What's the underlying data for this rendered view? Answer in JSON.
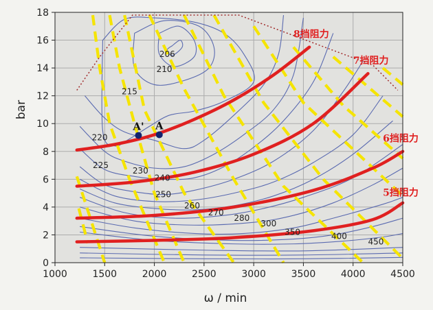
{
  "chart_data": {
    "type": "line",
    "title": "",
    "xlabel": "ω / min",
    "ylabel": "bar",
    "xlim": [
      1000,
      4500
    ],
    "ylim": [
      0,
      18
    ],
    "xticks": [
      1000,
      1500,
      2000,
      2500,
      3000,
      3500,
      4000,
      4500
    ],
    "yticks": [
      0,
      2,
      4,
      6,
      8,
      10,
      12,
      14,
      16,
      18
    ],
    "grid": true,
    "resistance_curves": [
      {
        "name": "8挡阻力",
        "color": "#e02020",
        "x": [
          1220,
          1600,
          2000,
          2400,
          2800,
          3200,
          3560
        ],
        "y": [
          8.1,
          8.5,
          9.2,
          10.3,
          11.7,
          13.5,
          15.5
        ]
      },
      {
        "name": "7挡阻力",
        "color": "#e02020",
        "x": [
          1220,
          1800,
          2400,
          3000,
          3600,
          4150
        ],
        "y": [
          5.5,
          5.8,
          6.5,
          7.8,
          10.0,
          13.6
        ]
      },
      {
        "name": "6挡阻力",
        "color": "#e02020",
        "x": [
          1220,
          2000,
          2800,
          3600,
          4200,
          4500
        ],
        "y": [
          3.2,
          3.4,
          4.0,
          5.2,
          6.8,
          8.0
        ]
      },
      {
        "name": "5挡阻力",
        "color": "#e02020",
        "x": [
          1220,
          2000,
          2800,
          3600,
          4200,
          4500
        ],
        "y": [
          1.5,
          1.6,
          1.8,
          2.3,
          3.1,
          4.3
        ]
      }
    ],
    "power_lines": {
      "color": "#f5e400",
      "style": "dashed",
      "lines": [
        {
          "x": [
            1380,
            1450,
            1550,
            1750,
            2100
          ],
          "y": [
            17.8,
            14,
            10,
            6,
            0
          ]
        },
        {
          "x": [
            1550,
            1650,
            1800,
            2000,
            2300
          ],
          "y": [
            17.8,
            14,
            10,
            5,
            0
          ]
        },
        {
          "x": [
            1700,
            1900,
            2300,
            2800
          ],
          "y": [
            17.8,
            11,
            5,
            0
          ]
        },
        {
          "x": [
            1950,
            2300,
            2800,
            3300
          ],
          "y": [
            17.8,
            12.5,
            6,
            0
          ]
        },
        {
          "x": [
            2300,
            2700,
            3300,
            4100
          ],
          "y": [
            17.8,
            12,
            5.5,
            0
          ]
        },
        {
          "x": [
            2600,
            3100,
            3700,
            4500
          ],
          "y": [
            17.8,
            11.5,
            6,
            0.3
          ]
        },
        {
          "x": [
            3000,
            3500,
            4500
          ],
          "y": [
            17,
            11.5,
            4.8
          ]
        },
        {
          "x": [
            3400,
            3900,
            4500
          ],
          "y": [
            15.5,
            11.3,
            7.5
          ]
        },
        {
          "x": [
            3800,
            4500
          ],
          "y": [
            14.8,
            10.5
          ]
        },
        {
          "x": [
            4300,
            4500
          ],
          "y": [
            14.0,
            12.8
          ]
        },
        {
          "x": [
            1220,
            1500
          ],
          "y": [
            6.2,
            0
          ]
        },
        {
          "x": [
            1240,
            1330
          ],
          "y": [
            3.9,
            1.4
          ]
        }
      ]
    },
    "full_load_curve": {
      "color": "#a02a2a",
      "style": "dotted",
      "x": [
        1220,
        1450,
        1780,
        2850,
        4200,
        4450
      ],
      "y": [
        12.4,
        14.8,
        17.8,
        17.8,
        14.2,
        12.4
      ]
    },
    "bsfc_contours": [
      {
        "label": "206",
        "x": [
          2180,
          2260,
          2280,
          2180,
          2130,
          2180
        ],
        "y": [
          15.6,
          16.0,
          15.5,
          14.9,
          15.3,
          15.6
        ]
      },
      {
        "label": "210",
        "x": [
          2050,
          2250,
          2400,
          2400,
          2200,
          2050,
          2050
        ],
        "y": [
          16.5,
          17.0,
          16.0,
          14.8,
          14.1,
          15.0,
          16.5
        ]
      },
      {
        "label": "215",
        "x": [
          1800,
          2100,
          2450,
          2600,
          2550,
          2300,
          2000,
          1800,
          1800
        ],
        "y": [
          16.5,
          17.4,
          17.0,
          15.5,
          14.0,
          13.1,
          12.8,
          14.0,
          16.5
        ]
      },
      {
        "label": "220",
        "x": [
          1480,
          1700,
          2000,
          2400,
          2700,
          2900,
          3000,
          2700,
          2400,
          2150,
          1950,
          1750,
          1600,
          1480,
          1480
        ],
        "y": [
          16.0,
          17.5,
          17.6,
          17.3,
          16.5,
          15.0,
          13.0,
          11.6,
          10.9,
          10.6,
          9.8,
          8.9,
          8.4,
          9.5,
          16.0
        ]
      },
      {
        "label": "225",
        "x": [
          1300,
          1500,
          1700,
          2000,
          2300,
          2500,
          2800,
          3100,
          3250,
          3300
        ],
        "y": [
          12.0,
          10.4,
          9.4,
          8.8,
          8.2,
          8.8,
          10.6,
          12.8,
          15.0,
          17.8
        ]
      },
      {
        "label": "230",
        "x": [
          1250,
          1500,
          1700,
          2000,
          2300,
          2600,
          2900,
          3200,
          3400,
          3500
        ],
        "y": [
          9.8,
          8.0,
          7.3,
          6.8,
          6.9,
          7.8,
          9.2,
          11.0,
          13.5,
          17.6
        ]
      },
      {
        "label": "240",
        "x": [
          1250,
          1500,
          1800,
          2100,
          2400,
          2700,
          3000,
          3300,
          3600,
          3800
        ],
        "y": [
          8.2,
          6.7,
          6.2,
          6.0,
          6.1,
          6.9,
          8.3,
          10.2,
          13.0,
          16.5
        ]
      },
      {
        "label": "250",
        "x": [
          1250,
          1500,
          1800,
          2100,
          2400,
          2800,
          3200,
          3600,
          3900,
          4100
        ],
        "y": [
          6.9,
          5.6,
          5.1,
          4.9,
          5.2,
          6.0,
          7.3,
          9.5,
          12.3,
          14.5
        ]
      },
      {
        "label": "260",
        "x": [
          1250,
          1600,
          2000,
          2400,
          2800,
          3200,
          3600,
          4000,
          4300
        ],
        "y": [
          6.0,
          4.8,
          4.4,
          4.5,
          5.0,
          5.8,
          7.2,
          9.2,
          12.0
        ]
      },
      {
        "label": "270",
        "x": [
          1250,
          1600,
          2000,
          2400,
          2800,
          3200,
          3600,
          4000,
          4400
        ],
        "y": [
          5.3,
          4.3,
          3.9,
          3.8,
          4.1,
          4.8,
          6.0,
          7.8,
          10.2
        ]
      },
      {
        "label": "280",
        "x": [
          1250,
          1700,
          2200,
          2700,
          3100,
          3500,
          4000,
          4500
        ],
        "y": [
          4.7,
          3.6,
          3.2,
          3.4,
          3.9,
          4.7,
          6.1,
          8.5
        ]
      },
      {
        "label": "300",
        "x": [
          1250,
          1800,
          2400,
          3000,
          3400,
          3800,
          4200,
          4500
        ],
        "y": [
          4.0,
          3.0,
          2.7,
          2.9,
          3.4,
          4.3,
          5.6,
          6.8
        ]
      },
      {
        "label": "350",
        "x": [
          1250,
          1800,
          2400,
          2900,
          3400,
          3800,
          4300,
          4500
        ],
        "y": [
          3.2,
          2.5,
          2.1,
          2.1,
          2.5,
          3.2,
          4.2,
          4.7
        ]
      },
      {
        "label": "400",
        "x": [
          1250,
          2000,
          2800,
          3400,
          3800,
          4200,
          4500
        ],
        "y": [
          2.6,
          1.9,
          1.6,
          1.7,
          2.0,
          2.6,
          3.2
        ]
      },
      {
        "label": "450",
        "x": [
          1250,
          2000,
          2800,
          3400,
          3900,
          4300,
          4500
        ],
        "y": [
          2.2,
          1.6,
          1.35,
          1.35,
          1.55,
          1.85,
          2.1
        ]
      },
      {
        "label": "",
        "x": [
          1250,
          2500,
          3500,
          4500
        ],
        "y": [
          1.1,
          0.9,
          0.85,
          1.1
        ]
      },
      {
        "label": "",
        "x": [
          1250,
          2500,
          3500,
          4500
        ],
        "y": [
          0.7,
          0.55,
          0.55,
          0.7
        ]
      },
      {
        "label": "",
        "x": [
          1250,
          2500,
          3500,
          4500
        ],
        "y": [
          0.35,
          0.28,
          0.28,
          0.38
        ]
      }
    ],
    "contour_labels": [
      {
        "text": "206",
        "x": 2130,
        "y": 15.0
      },
      {
        "text": "210",
        "x": 2100,
        "y": 13.9
      },
      {
        "text": "215",
        "x": 1750,
        "y": 12.3
      },
      {
        "text": "220",
        "x": 1450,
        "y": 9.0
      },
      {
        "text": "225",
        "x": 1460,
        "y": 7.0
      },
      {
        "text": "230",
        "x": 1860,
        "y": 6.6
      },
      {
        "text": "240",
        "x": 2080,
        "y": 6.1
      },
      {
        "text": "250",
        "x": 2090,
        "y": 4.9
      },
      {
        "text": "260",
        "x": 2380,
        "y": 4.1
      },
      {
        "text": "270",
        "x": 2620,
        "y": 3.6
      },
      {
        "text": "280",
        "x": 2880,
        "y": 3.2
      },
      {
        "text": "300",
        "x": 3150,
        "y": 2.8
      },
      {
        "text": "350",
        "x": 3390,
        "y": 2.2
      },
      {
        "text": "400",
        "x": 3860,
        "y": 1.9
      },
      {
        "text": "450",
        "x": 4230,
        "y": 1.5
      }
    ],
    "resistance_labels": [
      {
        "text": "8挡阻力",
        "x": 3400,
        "y": 16.2
      },
      {
        "text": "7挡阻力",
        "x": 4000,
        "y": 14.3
      },
      {
        "text": "6挡阻力",
        "x": 4300,
        "y": 8.7
      },
      {
        "text": "5挡阻力",
        "x": 4300,
        "y": 4.8
      }
    ],
    "points": [
      {
        "label": "A'",
        "x": 1840,
        "y": 9.15
      },
      {
        "label": "A",
        "x": 2050,
        "y": 9.2
      }
    ]
  }
}
